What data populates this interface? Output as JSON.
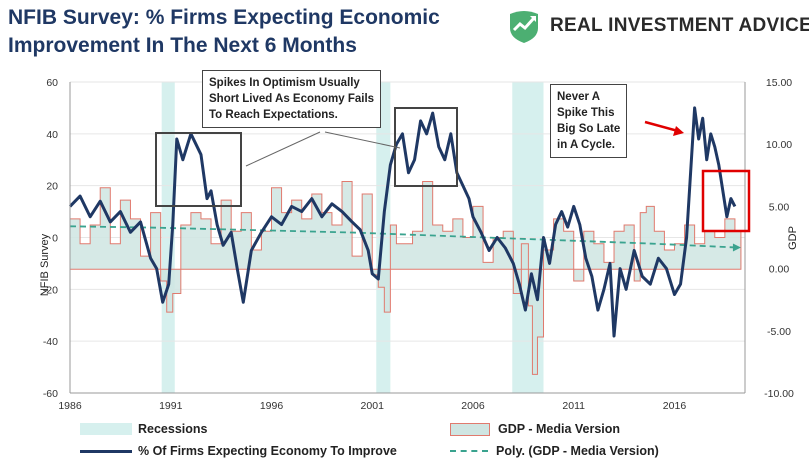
{
  "title": "NFIB Survey:  % Firms Expecting Economic Improvement In The  Next 6 Months",
  "logo": {
    "text": "REAL INVESTMENT ADVICE",
    "icon": "chart-shield-icon"
  },
  "annotations": {
    "left": [
      "Spikes In Optimism Usually",
      "Short Lived As Economy Fails",
      "To Reach Expectations."
    ],
    "right": [
      "Never A",
      "Spike This",
      "Big So Late",
      "in A Cycle."
    ]
  },
  "legend": {
    "recessions": "Recessions",
    "gdp": "GDP - Media Version",
    "nfib": "% Of Firms Expecting Economy To Improve",
    "poly": "Poly. (GDP - Media Version)"
  },
  "colors": {
    "nfib": "#1f3864",
    "gdp_fill": "#cfe5e2",
    "gdp_stroke": "#e07a6e",
    "recession": "#d6f0ee",
    "poly": "#3aa38f",
    "callout": "#e00000"
  },
  "chart_data": {
    "type": "line",
    "ylabel": "NFIB Survey",
    "y2label": "GDP",
    "ylim": [
      -60,
      60
    ],
    "y2lim": [
      -10,
      15
    ],
    "yticks": [
      "60",
      "40",
      "20",
      "0",
      "-20",
      "-40",
      "-60"
    ],
    "y2ticks": [
      "15.00",
      "10.00",
      "5.00",
      "0.00",
      "-5.00",
      "-10.00"
    ],
    "xticks": [
      "1986",
      "1991",
      "1996",
      "2001",
      "2006",
      "2011",
      "2016"
    ],
    "xlim": [
      1986,
      2019.5
    ],
    "recessions": [
      [
        1990.55,
        1991.2
      ],
      [
        2001.2,
        2001.9
      ],
      [
        2007.95,
        2009.5
      ]
    ],
    "series": [
      {
        "name": "% Of Firms Expecting Economy To Improve",
        "x": [
          1986.0,
          1986.5,
          1987.0,
          1987.5,
          1988.0,
          1988.5,
          1989.0,
          1989.5,
          1990.0,
          1990.3,
          1990.6,
          1990.9,
          1991.1,
          1991.3,
          1991.6,
          1992.0,
          1992.5,
          1992.8,
          1993.0,
          1993.3,
          1993.6,
          1994.0,
          1994.3,
          1994.6,
          1995.0,
          1995.5,
          1996.0,
          1996.5,
          1997.0,
          1997.5,
          1998.0,
          1998.5,
          1999.0,
          1999.5,
          2000.0,
          2000.4,
          2000.8,
          2001.0,
          2001.3,
          2001.6,
          2001.9,
          2002.2,
          2002.5,
          2002.8,
          2003.1,
          2003.4,
          2003.7,
          2004.0,
          2004.3,
          2004.6,
          2004.9,
          2005.2,
          2005.5,
          2005.8,
          2006.0,
          2006.4,
          2006.8,
          2007.2,
          2007.6,
          2008.0,
          2008.3,
          2008.6,
          2008.9,
          2009.2,
          2009.5,
          2009.8,
          2010.1,
          2010.4,
          2010.7,
          2011.0,
          2011.3,
          2011.6,
          2011.9,
          2012.2,
          2012.5,
          2012.8,
          2013.0,
          2013.3,
          2013.6,
          2014.0,
          2014.4,
          2014.8,
          2015.2,
          2015.6,
          2016.0,
          2016.3,
          2016.6,
          2016.8,
          2017.0,
          2017.2,
          2017.4,
          2017.6,
          2017.8,
          2018.0,
          2018.2,
          2018.4,
          2018.6,
          2018.8,
          2019.0
        ],
        "values": [
          12,
          16,
          8,
          14,
          6,
          10,
          2,
          6,
          -8,
          -12,
          -25,
          -18,
          5,
          38,
          30,
          40,
          32,
          15,
          18,
          5,
          -3,
          2,
          -12,
          -25,
          -5,
          2,
          8,
          5,
          12,
          10,
          15,
          8,
          13,
          10,
          6,
          3,
          -5,
          -14,
          -16,
          10,
          28,
          36,
          40,
          25,
          30,
          45,
          40,
          48,
          35,
          30,
          40,
          25,
          20,
          15,
          8,
          2,
          -5,
          0,
          -4,
          -10,
          -18,
          -28,
          -14,
          -24,
          0,
          -10,
          5,
          10,
          4,
          12,
          5,
          -8,
          -15,
          -28,
          -20,
          -10,
          -38,
          -12,
          -20,
          -5,
          -15,
          -18,
          -8,
          -12,
          -22,
          -18,
          0,
          25,
          50,
          38,
          46,
          30,
          40,
          35,
          28,
          18,
          8,
          15,
          12
        ]
      },
      {
        "name": "GDP - Media Version",
        "x": [
          1986.0,
          1986.5,
          1987.0,
          1987.5,
          1988.0,
          1988.5,
          1989.0,
          1989.5,
          1990.0,
          1990.5,
          1990.8,
          1991.1,
          1991.5,
          1992.0,
          1992.5,
          1993.0,
          1993.5,
          1994.0,
          1994.5,
          1995.0,
          1995.5,
          1996.0,
          1996.5,
          1997.0,
          1997.5,
          1998.0,
          1998.5,
          1999.0,
          1999.5,
          2000.0,
          2000.5,
          2001.0,
          2001.3,
          2001.6,
          2001.9,
          2002.2,
          2002.5,
          2003.0,
          2003.5,
          2004.0,
          2004.5,
          2005.0,
          2005.5,
          2006.0,
          2006.5,
          2007.0,
          2007.5,
          2008.0,
          2008.4,
          2008.75,
          2008.95,
          2009.2,
          2009.5,
          2010.0,
          2010.5,
          2011.0,
          2011.5,
          2012.0,
          2012.5,
          2013.0,
          2013.5,
          2014.0,
          2014.3,
          2014.6,
          2015.0,
          2015.5,
          2016.0,
          2016.5,
          2017.0,
          2017.5,
          2018.0,
          2018.5,
          2019.0
        ],
        "values": [
          4.0,
          2.0,
          3.5,
          6.5,
          2.0,
          5.5,
          4.0,
          1.0,
          4.5,
          -1.0,
          -3.5,
          -2.0,
          3.5,
          4.5,
          4.0,
          2.0,
          5.5,
          3.0,
          4.5,
          1.5,
          3.0,
          6.5,
          4.5,
          5.5,
          4.0,
          6.0,
          4.5,
          3.5,
          7.0,
          1.0,
          6.0,
          -0.5,
          -1.5,
          -3.5,
          3.5,
          2.0,
          2.0,
          3.0,
          7.0,
          3.5,
          3.0,
          4.0,
          2.5,
          5.0,
          0.5,
          2.5,
          3.0,
          -2.0,
          2.0,
          -3.0,
          -8.5,
          -5.5,
          1.5,
          4.0,
          3.0,
          -1.0,
          3.0,
          2.0,
          0.5,
          3.0,
          3.5,
          -1.0,
          4.5,
          5.0,
          3.0,
          1.5,
          2.0,
          3.5,
          2.0,
          3.0,
          2.5,
          4.0,
          3.0
        ]
      },
      {
        "name": "Poly. (GDP - Media Version)",
        "x": [
          1986,
          1990,
          1995,
          2000,
          2005,
          2010,
          2015,
          2019
        ],
        "values": [
          3.4,
          3.3,
          3.1,
          2.9,
          2.6,
          2.3,
          2.0,
          1.7
        ]
      }
    ]
  }
}
